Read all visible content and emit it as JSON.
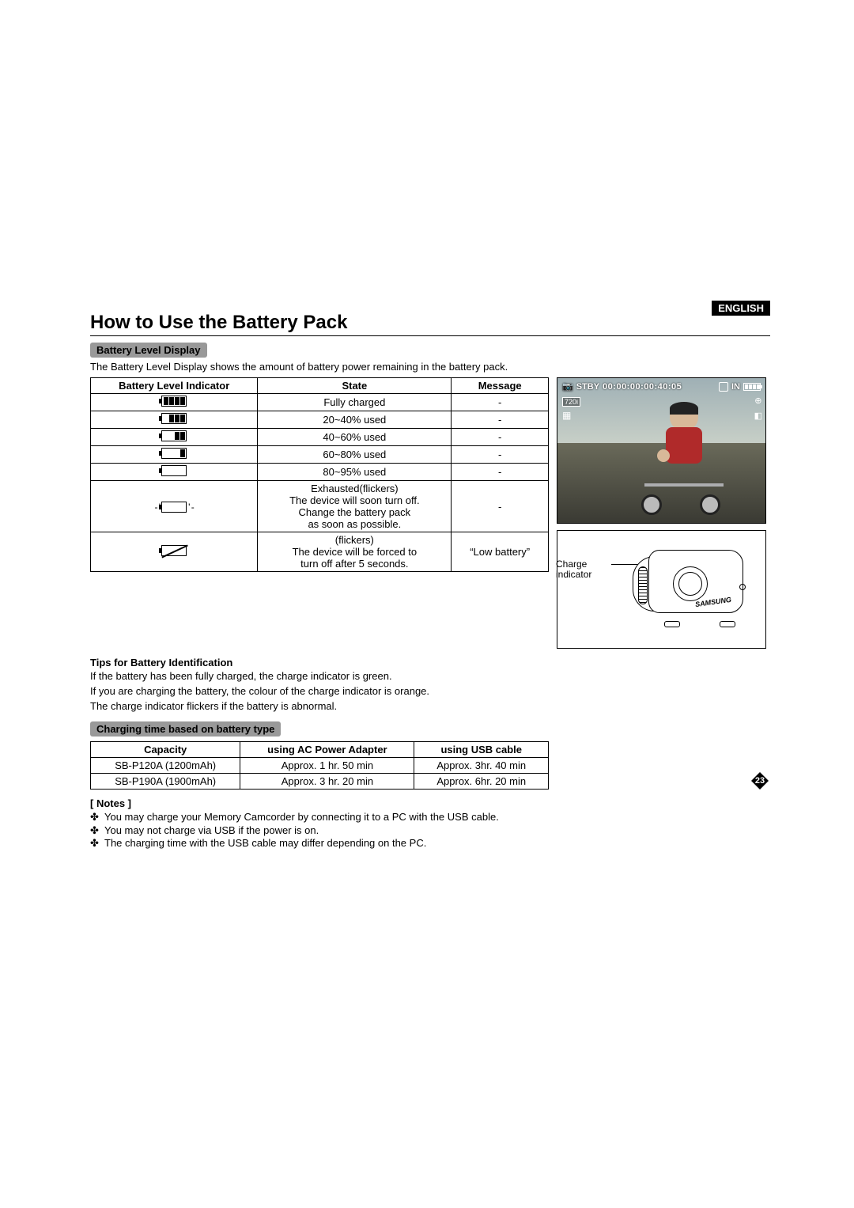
{
  "language_tag": "ENGLISH",
  "title": "How to Use the Battery Pack",
  "section1_heading": "Battery Level Display",
  "section1_intro": "The Battery Level Display shows the amount of battery power remaining in the battery pack.",
  "table1": {
    "headers": {
      "col1": "Battery Level Indicator",
      "col2": "State",
      "col3": "Message"
    },
    "rows": [
      {
        "bars": 4,
        "state": "Fully charged",
        "message": "-"
      },
      {
        "bars": 3,
        "state": "20~40% used",
        "message": "-"
      },
      {
        "bars": 2,
        "state": "40~60% used",
        "message": "-"
      },
      {
        "bars": 1,
        "state": "60~80% used",
        "message": "-"
      },
      {
        "bars": 0,
        "state": "80~95% used",
        "message": "-"
      },
      {
        "bars": 0,
        "blink": true,
        "state": "Exhausted(flickers)\nThe device will soon turn off.\nChange the battery pack\nas soon as possible.",
        "message": "-"
      },
      {
        "bars": 0,
        "slash": true,
        "state": "(flickers)\nThe device will be forced to\nturn off after 5 seconds.",
        "message": "“Low battery”"
      }
    ]
  },
  "charge_label": "Charge\nindicator",
  "tips_heading": "Tips for Battery Identification",
  "tips_lines": {
    "l1": "If the battery has been fully charged, the charge indicator is green.",
    "l2": "If you are charging the battery, the colour of the charge indicator is orange.",
    "l3": "The charge indicator flickers if the battery is abnormal."
  },
  "section2_heading": "Charging time based on battery type",
  "table2": {
    "headers": {
      "c1": "Capacity",
      "c2": "using AC Power Adapter",
      "c3": "using USB cable"
    },
    "rows": [
      {
        "cap": "SB-P120A (1200mAh)",
        "ac": "Approx. 1 hr. 50 min",
        "usb": "Approx. 3hr. 40 min"
      },
      {
        "cap": "SB-P190A (1900mAh)",
        "ac": "Approx. 3 hr. 20 min",
        "usb": "Approx. 6hr. 20 min"
      }
    ]
  },
  "notes_heading": "[ Notes ]",
  "notes": {
    "n1": "You may charge your Memory Camcorder  by connecting it to a PC with the USB cable.",
    "n2": "You may not charge via USB if the power is  on.",
    "n3": "The charging time with the USB cable may differ depending on the PC."
  },
  "screen": {
    "mode_icon": "camera",
    "stby": "STBY",
    "timecode": "00:00:00:00:40:05",
    "storage": "IN",
    "res_badge": "720i",
    "brand": "SAMSUNG"
  },
  "page_number": "23",
  "colors": {
    "section_bar_bg": "#999999",
    "lang_bg": "#000000",
    "lang_fg": "#ffffff",
    "table_border": "#000000"
  }
}
